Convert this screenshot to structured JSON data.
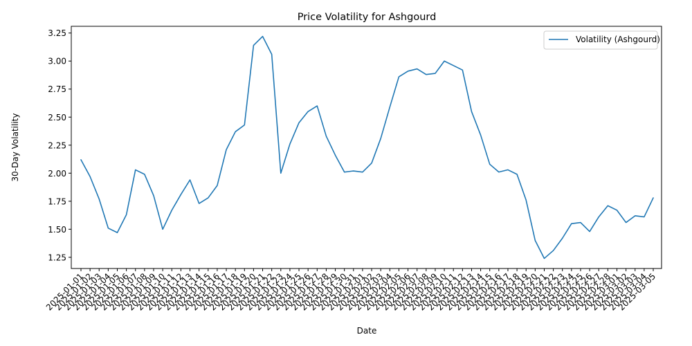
{
  "chart_data": {
    "type": "line",
    "title": "Price Volatility for Ashgourd",
    "xlabel": "Date",
    "ylabel": "30-Day Volatility",
    "ylim": [
      1.15,
      3.31
    ],
    "yticks": [
      1.25,
      1.5,
      1.75,
      2.0,
      2.25,
      2.5,
      2.75,
      3.0,
      3.25
    ],
    "ytick_labels": [
      "1.25",
      "1.50",
      "1.75",
      "2.00",
      "2.25",
      "2.50",
      "2.75",
      "3.00",
      "3.25"
    ],
    "grid": false,
    "legend_position": "top-right",
    "x": [
      "2025-01-01",
      "2025-01-02",
      "2025-01-03",
      "2025-01-04",
      "2025-01-05",
      "2025-01-06",
      "2025-01-07",
      "2025-01-08",
      "2025-01-09",
      "2025-01-10",
      "2025-01-11",
      "2025-01-12",
      "2025-01-13",
      "2025-01-14",
      "2025-01-15",
      "2025-01-16",
      "2025-01-17",
      "2025-01-18",
      "2025-01-19",
      "2025-01-20",
      "2025-01-21",
      "2025-01-22",
      "2025-01-23",
      "2025-01-24",
      "2025-01-25",
      "2025-01-26",
      "2025-01-27",
      "2025-01-28",
      "2025-01-29",
      "2025-01-30",
      "2025-01-31",
      "2025-02-01",
      "2025-02-02",
      "2025-02-03",
      "2025-02-04",
      "2025-02-05",
      "2025-02-06",
      "2025-02-07",
      "2025-02-08",
      "2025-02-09",
      "2025-02-10",
      "2025-02-11",
      "2025-02-12",
      "2025-02-13",
      "2025-02-14",
      "2025-02-15",
      "2025-02-16",
      "2025-02-17",
      "2025-02-18",
      "2025-02-19",
      "2025-02-20",
      "2025-02-21",
      "2025-02-22",
      "2025-02-23",
      "2025-02-24",
      "2025-02-25",
      "2025-02-26",
      "2025-02-27",
      "2025-02-28",
      "2025-03-01",
      "2025-03-02",
      "2025-03-03",
      "2025-03-04",
      "2025-03-05"
    ],
    "series": [
      {
        "name": "Volatility (Ashgourd)",
        "color": "#1f77b4",
        "values": [
          2.12,
          1.97,
          1.77,
          1.51,
          1.47,
          1.63,
          2.03,
          1.99,
          1.8,
          1.5,
          1.67,
          1.81,
          1.94,
          1.73,
          1.78,
          1.89,
          2.21,
          2.37,
          2.43,
          3.14,
          3.22,
          3.06,
          2.0,
          2.26,
          2.45,
          2.55,
          2.6,
          2.33,
          2.16,
          2.01,
          2.02,
          2.01,
          2.09,
          2.31,
          2.59,
          2.86,
          2.91,
          2.93,
          2.88,
          2.89,
          3.0,
          2.96,
          2.92,
          2.55,
          2.34,
          2.08,
          2.01,
          2.03,
          1.99,
          1.76,
          1.4,
          1.24,
          1.31,
          1.42,
          1.55,
          1.56,
          1.48,
          1.61,
          1.71,
          1.67,
          1.56,
          1.62,
          1.61,
          1.78
        ]
      }
    ]
  }
}
